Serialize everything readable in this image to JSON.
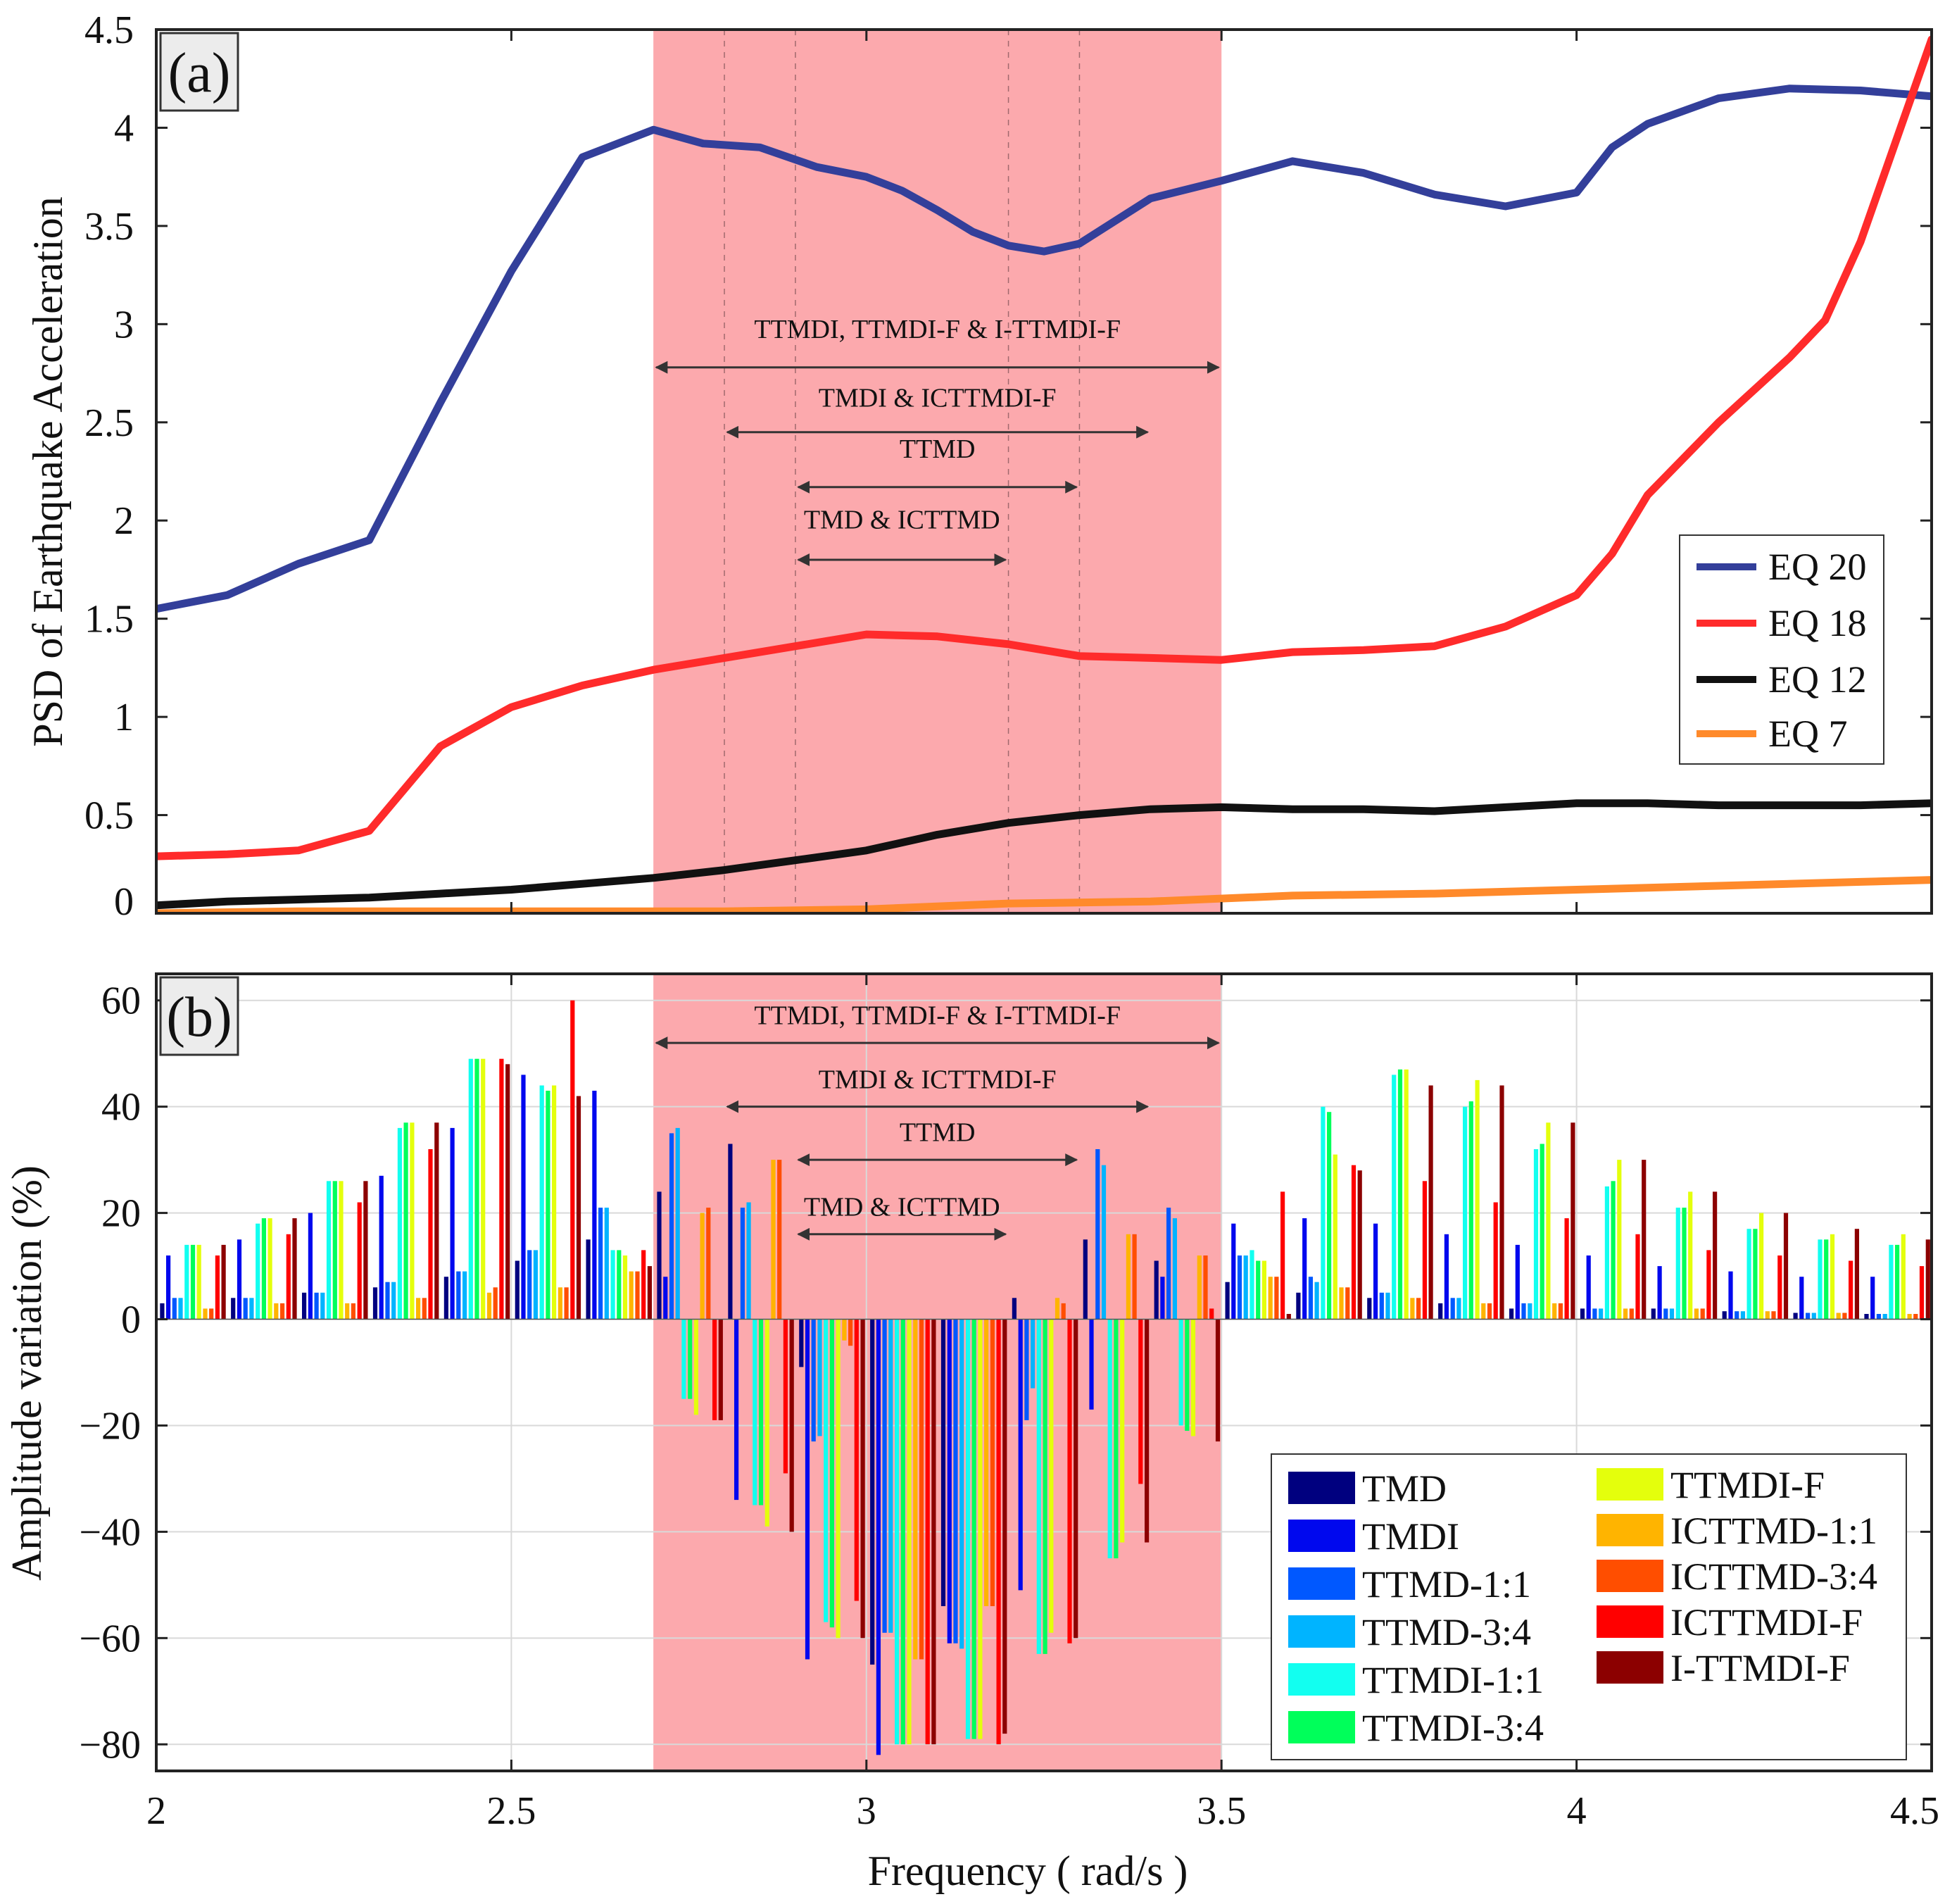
{
  "chart_data": [
    {
      "panel": "(a)",
      "type": "line",
      "ylabel": "PSD of Earthquake Acceleration",
      "xlabel": "",
      "xlim": [
        2,
        4.5
      ],
      "ylim": [
        0,
        4.5
      ],
      "xticks": [
        "2",
        "2.5",
        "3",
        "3.5",
        "4",
        "4.5"
      ],
      "yticks": [
        "0",
        "0.5",
        "1",
        "1.5",
        "2",
        "2.5",
        "3",
        "3.5",
        "4",
        "4.5"
      ],
      "grid": false,
      "legend_position": "right",
      "shaded_band": {
        "x0": 2.7,
        "x1": 3.5,
        "color": "#fca9ad"
      },
      "dashed_lines": [
        2.8,
        2.9,
        3.2,
        3.3
      ],
      "annotations": [
        {
          "text": "TTMDI, TTMDI-F & I-TTMDI-F",
          "x0": 2.7,
          "x1": 3.5,
          "y": 2.78,
          "label_y": 2.93
        },
        {
          "text": "TMDI & ICTTMDI-F",
          "x0": 2.8,
          "x1": 3.4,
          "y": 2.45,
          "label_y": 2.58
        },
        {
          "text": "TTMD",
          "x0": 2.9,
          "x1": 3.3,
          "y": 2.17,
          "label_y": 2.32
        },
        {
          "text": "TMD & ICTTMD",
          "x0": 2.9,
          "x1": 3.2,
          "y": 1.8,
          "label_y": 1.96
        }
      ],
      "series": [
        {
          "name": "EQ 20",
          "color": "#333f9a",
          "x": [
            2.0,
            2.1,
            2.2,
            2.3,
            2.4,
            2.5,
            2.6,
            2.7,
            2.77,
            2.85,
            2.93,
            3.0,
            3.05,
            3.1,
            3.15,
            3.2,
            3.25,
            3.3,
            3.4,
            3.5,
            3.6,
            3.7,
            3.8,
            3.9,
            4.0,
            4.05,
            4.1,
            4.2,
            4.3,
            4.4,
            4.5
          ],
          "values": [
            1.55,
            1.62,
            1.78,
            1.9,
            2.6,
            3.27,
            3.85,
            3.99,
            3.92,
            3.9,
            3.8,
            3.75,
            3.68,
            3.58,
            3.47,
            3.4,
            3.37,
            3.41,
            3.64,
            3.73,
            3.83,
            3.77,
            3.66,
            3.6,
            3.67,
            3.9,
            4.02,
            4.15,
            4.2,
            4.19,
            4.16
          ]
        },
        {
          "name": "EQ 18",
          "color": "#ff2b2b",
          "x": [
            2.0,
            2.1,
            2.2,
            2.3,
            2.4,
            2.5,
            2.6,
            2.7,
            2.8,
            2.9,
            3.0,
            3.1,
            3.2,
            3.3,
            3.4,
            3.5,
            3.55,
            3.6,
            3.7,
            3.8,
            3.9,
            4.0,
            4.05,
            4.1,
            4.2,
            4.3,
            4.35,
            4.4,
            4.5
          ],
          "values": [
            0.29,
            0.3,
            0.32,
            0.42,
            0.85,
            1.05,
            1.16,
            1.24,
            1.3,
            1.36,
            1.42,
            1.41,
            1.37,
            1.31,
            1.3,
            1.29,
            1.31,
            1.33,
            1.34,
            1.36,
            1.46,
            1.62,
            1.83,
            2.13,
            2.5,
            2.83,
            3.02,
            3.42,
            4.45
          ]
        },
        {
          "name": "EQ 12",
          "color": "#111111",
          "x": [
            2.0,
            2.1,
            2.2,
            2.3,
            2.4,
            2.5,
            2.6,
            2.7,
            2.8,
            2.9,
            3.0,
            3.1,
            3.2,
            3.3,
            3.4,
            3.5,
            3.6,
            3.7,
            3.8,
            3.9,
            4.0,
            4.1,
            4.2,
            4.3,
            4.4,
            4.5
          ],
          "values": [
            0.04,
            0.06,
            0.07,
            0.08,
            0.1,
            0.12,
            0.15,
            0.18,
            0.22,
            0.27,
            0.32,
            0.4,
            0.46,
            0.5,
            0.53,
            0.54,
            0.53,
            0.53,
            0.52,
            0.54,
            0.56,
            0.56,
            0.55,
            0.55,
            0.55,
            0.56
          ]
        },
        {
          "name": "EQ 7",
          "color": "#ff8a2b",
          "x": [
            2.0,
            2.2,
            2.4,
            2.6,
            2.8,
            3.0,
            3.2,
            3.4,
            3.6,
            3.8,
            4.0,
            4.2,
            4.4,
            4.5
          ],
          "values": [
            0.0,
            0.01,
            0.01,
            0.01,
            0.01,
            0.02,
            0.05,
            0.06,
            0.09,
            0.1,
            0.12,
            0.14,
            0.16,
            0.17
          ]
        }
      ]
    },
    {
      "panel": "(b)",
      "type": "bar",
      "xlabel": "Frequency ( rad/s )",
      "ylabel": "Amplitude variation (%)",
      "xlim": [
        2,
        4.5
      ],
      "ylim": [
        -85,
        65
      ],
      "xticks": [
        "2",
        "2.5",
        "3",
        "3.5",
        "4",
        "4.5"
      ],
      "yticks": [
        "−80",
        "−60",
        "−40",
        "−20",
        "0",
        "20",
        "40",
        "60"
      ],
      "grid": true,
      "legend_position": "bottom-right",
      "shaded_band": {
        "x0": 2.7,
        "x1": 3.5,
        "color": "#fca9ad"
      },
      "annotations": [
        {
          "text": "TTMDI, TTMDI-F & I-TTMDI-F",
          "x0": 2.7,
          "x1": 3.5,
          "y": 52,
          "label_y": 55.5
        },
        {
          "text": "TMDI & ICTTMDI-F",
          "x0": 2.8,
          "x1": 3.4,
          "y": 40,
          "label_y": 43.5
        },
        {
          "text": "TTMD",
          "x0": 2.9,
          "x1": 3.3,
          "y": 30,
          "label_y": 33.5
        },
        {
          "text": "TMD & ICTTMD",
          "x0": 2.9,
          "x1": 3.2,
          "y": 16,
          "label_y": 19.5
        }
      ],
      "categories": [
        2.0,
        2.1,
        2.2,
        2.3,
        2.4,
        2.5,
        2.6,
        2.7,
        2.8,
        2.9,
        3.0,
        3.1,
        3.2,
        3.3,
        3.4,
        3.5,
        3.6,
        3.7,
        3.8,
        3.9,
        4.0,
        4.1,
        4.2,
        4.3,
        4.4
      ],
      "series": [
        {
          "name": "TMD",
          "color": "#00007f",
          "values": [
            3,
            4,
            5,
            6,
            8,
            11,
            15,
            24,
            33,
            -9,
            -65,
            -54,
            4,
            15,
            11,
            7,
            5,
            4,
            3,
            2,
            2,
            2,
            1.5,
            1.2,
            1
          ]
        },
        {
          "name": "TMDI",
          "color": "#0008ee",
          "values": [
            12,
            15,
            20,
            27,
            36,
            46,
            43,
            8,
            -34,
            -64,
            -82,
            -61,
            -51,
            -17,
            8,
            18,
            19,
            18,
            16,
            14,
            12,
            10,
            9,
            8,
            8
          ]
        },
        {
          "name": "TTMD-1:1",
          "color": "#0058ff",
          "values": [
            4,
            4,
            5,
            7,
            9,
            13,
            21,
            35,
            21,
            -23,
            -59,
            -61,
            -19,
            32,
            21,
            12,
            8,
            5,
            4,
            3,
            2,
            2,
            1.5,
            1.2,
            1
          ]
        },
        {
          "name": "TTMD-3:4",
          "color": "#00b4ff",
          "values": [
            4,
            4,
            5,
            7,
            9,
            13,
            21,
            36,
            22,
            -22,
            -59,
            -62,
            -13,
            29,
            19,
            12,
            7,
            5,
            4,
            3,
            2,
            2,
            1.5,
            1.2,
            1
          ]
        },
        {
          "name": "TTMDI-1:1",
          "color": "#12fff0",
          "values": [
            14,
            18,
            26,
            36,
            49,
            44,
            13,
            -15,
            -35,
            -57,
            -80,
            -79,
            -63,
            -45,
            -20,
            13,
            40,
            46,
            40,
            32,
            25,
            21,
            17,
            15,
            14
          ]
        },
        {
          "name": "TTMDI-3:4",
          "color": "#00ff5a",
          "values": [
            14,
            19,
            26,
            37,
            49,
            43,
            13,
            -15,
            -35,
            -58,
            -80,
            -79,
            -63,
            -45,
            -21,
            11,
            39,
            47,
            41,
            33,
            26,
            21,
            17,
            15,
            14
          ]
        },
        {
          "name": "TTMDI-F",
          "color": "#e4ff0c",
          "values": [
            14,
            19,
            26,
            37,
            49,
            44,
            12,
            -18,
            -39,
            -60,
            -80,
            -79,
            -59,
            -42,
            -22,
            11,
            31,
            47,
            45,
            37,
            30,
            24,
            20,
            16,
            16
          ]
        },
        {
          "name": "ICTTMD-1:1",
          "color": "#ffb400",
          "values": [
            2,
            3,
            3,
            4,
            5,
            6,
            9,
            20,
            30,
            -4,
            -64,
            -54,
            4,
            16,
            12,
            8,
            6,
            4,
            3,
            3,
            2,
            2,
            1.5,
            1.2,
            1
          ]
        },
        {
          "name": "ICTTMD-3:4",
          "color": "#ff4e00",
          "values": [
            2,
            3,
            3,
            4,
            6,
            6,
            9,
            21,
            30,
            -5,
            -64,
            -54,
            3,
            16,
            12,
            8,
            6,
            4,
            3,
            3,
            2,
            2,
            1.5,
            1.2,
            1
          ]
        },
        {
          "name": "ICTTMDI-F",
          "color": "#ff0000",
          "values": [
            12,
            16,
            22,
            32,
            49,
            60,
            13,
            -19,
            -29,
            -53,
            -80,
            -80,
            -61,
            -31,
            2,
            24,
            29,
            26,
            22,
            19,
            16,
            13,
            12,
            11,
            10
          ]
        },
        {
          "name": "I-TTMDI-F",
          "color": "#8c0000",
          "values": [
            14,
            19,
            26,
            37,
            48,
            42,
            10,
            -19,
            -40,
            -60,
            -80,
            -78,
            -60,
            -42,
            -23,
            1,
            28,
            44,
            44,
            37,
            30,
            24,
            20,
            17,
            15
          ]
        }
      ]
    }
  ]
}
